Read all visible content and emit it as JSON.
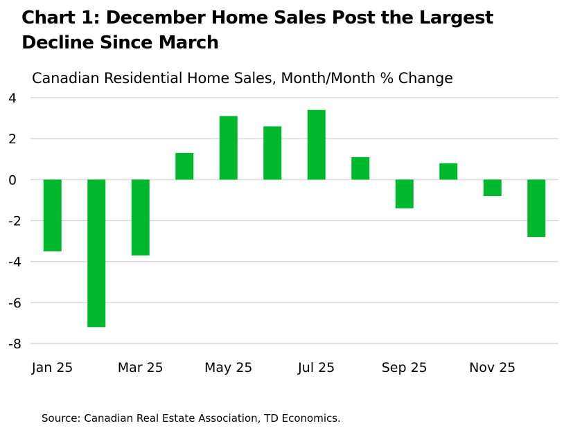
{
  "title_line1": "Chart 1: December Home Sales Post the Largest",
  "title_line2": "Decline Since March",
  "subtitle": "Canadian Residential Home Sales, Month/Month % Change",
  "source": "Source: Canadian Real Estate Association, TD Economics.",
  "colors": {
    "bar": "#00b82e",
    "grid": "#d9d9d9"
  },
  "chart_data": {
    "type": "bar",
    "categories": [
      "Jan 25",
      "Feb 25",
      "Mar 25",
      "Apr 25",
      "May 25",
      "Jun 25",
      "Jul 25",
      "Aug 25",
      "Sep 25",
      "Oct 25",
      "Nov 25",
      "Dec 25"
    ],
    "values": [
      -3.5,
      -7.2,
      -3.7,
      1.3,
      3.1,
      2.6,
      3.4,
      1.1,
      -1.4,
      0.8,
      -0.8,
      -2.8
    ],
    "x_tick_labels": [
      "Jan 25",
      "Mar 25",
      "May 25",
      "Jul 25",
      "Sep 25",
      "Nov 25"
    ],
    "y_ticks": [
      4,
      2,
      0,
      -2,
      -4,
      -6,
      -8
    ],
    "ylim": [
      -8,
      4
    ],
    "grid": true,
    "legend": "none"
  }
}
